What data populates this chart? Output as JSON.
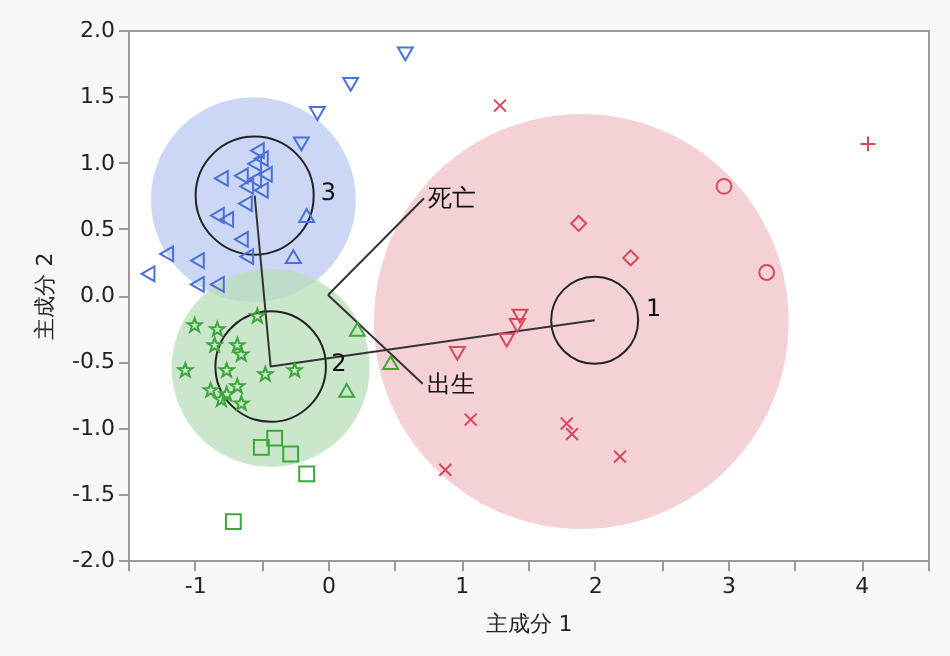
{
  "chart_data": {
    "type": "scatter",
    "xlabel": "主成分 1",
    "ylabel": "主成分 2",
    "xlim": [
      -1.5,
      4.5
    ],
    "xticks": [
      {
        "value": -1.5,
        "label": null
      },
      -1,
      {
        "value": -0.5,
        "label": null
      },
      0,
      {
        "value": 0.5,
        "label": null
      },
      1,
      {
        "value": 1.5,
        "label": null
      },
      2,
      {
        "value": 2.5,
        "label": null
      },
      3,
      {
        "value": 3.5,
        "label": null
      },
      4,
      {
        "value": 4.5,
        "label": null
      }
    ],
    "ylim": [
      -2,
      2
    ],
    "yticks": [
      {
        "value": -2,
        "label": "-2.0"
      },
      {
        "value": -1.5,
        "label": "-1.5"
      },
      {
        "value": -1,
        "label": "-1.0"
      },
      {
        "value": -0.5,
        "label": "-0.5"
      },
      {
        "value": 0,
        "label": "0.0"
      },
      {
        "value": 0.5,
        "label": "0.5"
      },
      {
        "value": 1,
        "label": "1.0"
      },
      {
        "value": 1.5,
        "label": "1.5"
      },
      {
        "value": 2,
        "label": "2.0"
      }
    ],
    "annotations": [
      {
        "text": "1",
        "x": 2.34,
        "y": -0.1
      },
      {
        "text": "2",
        "x": -0.02,
        "y": -0.51
      },
      {
        "text": "3",
        "x": -0.1,
        "y": 0.78
      }
    ],
    "series": [
      {
        "type": "bubble",
        "color": "#f0c2c7",
        "x": [
          1.9
        ],
        "values": [
          -0.2
        ],
        "sizes": [
          1
        ]
      },
      {
        "type": "bubble",
        "color": "#b9c9f0",
        "x": [
          -0.56
        ],
        "values": [
          0.72
        ],
        "sizes": [
          0.244
        ]
      },
      {
        "type": "bubble",
        "color": "#b9dfb9",
        "x": [
          -0.43
        ],
        "values": [
          -0.55
        ],
        "sizes": [
          0.228
        ]
      },
      {
        "type": "bubble",
        "color": "#222222",
        "line_style": "solid",
        "x": [
          2.0,
          -0.43,
          -0.55
        ],
        "values": [
          -0.19,
          -0.54,
          0.75
        ],
        "sizes": [
          0.044,
          0.071,
          0.081
        ]
      },
      {
        "type": "line",
        "name": "死亡",
        "color": "#333333",
        "x": [
          0,
          0.72
        ],
        "values": [
          0,
          0.73
        ]
      },
      {
        "type": "line",
        "name": "出生",
        "color": "#333333",
        "x": [
          0,
          0.71
        ],
        "values": [
          0,
          -0.67
        ]
      },
      {
        "type": "line",
        "color": "#333333",
        "x": [
          -0.55,
          -0.43,
          2.0
        ],
        "values": [
          0.75,
          -0.54,
          -0.19
        ]
      },
      {
        "color": "#4a70d9",
        "marker": "triangle-left",
        "x": [
          -0.53,
          -0.5,
          -0.55,
          -0.8,
          -0.65,
          -0.55,
          -0.47,
          -0.61,
          -0.5,
          -0.62,
          -0.83,
          -0.76,
          -0.65,
          -0.61,
          -1.21,
          -0.98,
          -1.35,
          -0.98,
          -0.83
        ],
        "values": [
          1.09,
          1.03,
          0.99,
          0.88,
          0.9,
          0.87,
          0.91,
          0.82,
          0.79,
          0.69,
          0.6,
          0.57,
          0.42,
          0.29,
          0.31,
          0.26,
          0.16,
          0.08,
          0.08
        ]
      },
      {
        "color": "#4a70d9",
        "marker": "triangle-down",
        "x": [
          0.58,
          0.17,
          -0.08,
          -0.2
        ],
        "values": [
          1.82,
          1.59,
          1.37,
          1.14
        ]
      },
      {
        "color": "#4a70d9",
        "marker": "triangle",
        "x": [
          -0.16,
          -0.26
        ],
        "values": [
          0.6,
          0.29
        ]
      },
      {
        "color": "#3aa83a",
        "marker": "star",
        "x": [
          -1.0,
          -0.83,
          -0.68,
          -0.65,
          -0.85,
          -1.07,
          -0.76,
          -0.47,
          -0.25,
          -0.88,
          -0.76,
          -0.68,
          -0.65,
          -0.8,
          -0.53
        ],
        "values": [
          -0.23,
          -0.26,
          -0.38,
          -0.45,
          -0.38,
          -0.57,
          -0.57,
          -0.6,
          -0.57,
          -0.72,
          -0.75,
          -0.69,
          -0.82,
          -0.79,
          -0.16
        ]
      },
      {
        "color": "#3aa83a",
        "marker": "square",
        "x": [
          -0.4,
          -0.5,
          -0.28,
          -0.16,
          -0.71
        ],
        "values": [
          -1.08,
          -1.15,
          -1.2,
          -1.35,
          -1.71
        ]
      },
      {
        "color": "#3aa83a",
        "marker": "triangle",
        "x": [
          0.22,
          0.14,
          0.47
        ],
        "values": [
          -0.26,
          -0.72,
          -0.51
        ]
      },
      {
        "color": "#d9475a",
        "marker": "cross",
        "x": [
          1.29
        ],
        "values": [
          1.43
        ]
      },
      {
        "color": "#d9475a",
        "marker": "diamond",
        "x": [
          1.88,
          2.27
        ],
        "values": [
          0.54,
          0.28
        ]
      },
      {
        "color": "#d9475a",
        "marker": "circle",
        "x": [
          2.97,
          3.29
        ],
        "values": [
          0.82,
          0.17
        ]
      },
      {
        "color": "#d9475a",
        "marker": "plus",
        "x": [
          4.05
        ],
        "values": [
          1.14
        ]
      },
      {
        "color": "#d9475a",
        "marker": "triangle-down",
        "x": [
          1.44,
          1.42,
          1.34,
          0.97
        ],
        "values": [
          -0.16,
          -0.23,
          -0.34,
          -0.44
        ]
      },
      {
        "color": "#d9475a",
        "marker": "cross",
        "x": [
          1.07,
          0.88
        ],
        "values": [
          -0.94,
          -1.32
        ]
      },
      {
        "color": "#d9475a",
        "marker": "cross",
        "x": [
          1.79,
          1.83,
          2.19
        ],
        "values": [
          -0.97,
          -1.05,
          -1.22
        ]
      }
    ]
  }
}
